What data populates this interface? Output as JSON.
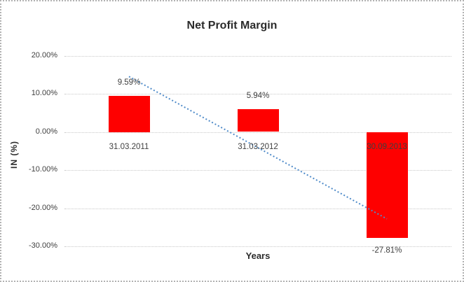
{
  "chart_data": {
    "type": "bar",
    "title": "Net Profit Margin",
    "xlabel": "Years",
    "ylabel": "IN (%)",
    "categories": [
      "31.03.2011",
      "31.03.2012",
      "30.09.2013"
    ],
    "values": [
      9.59,
      5.94,
      -27.81
    ],
    "data_labels": [
      "9.59%",
      "5.94%",
      "-27.81%"
    ],
    "y_ticks": [
      {
        "label": "20.00%",
        "value": 20
      },
      {
        "label": "10.00%",
        "value": 10
      },
      {
        "label": "0.00%",
        "value": 0
      },
      {
        "label": "-10.00%",
        "value": -10
      },
      {
        "label": "-20.00%",
        "value": -20
      },
      {
        "label": "-30.00%",
        "value": -30
      }
    ],
    "ylim": [
      -30,
      20
    ],
    "grid": true,
    "legend_position": "none",
    "trendline": {
      "type": "linear",
      "style": "dotted"
    },
    "colors": {
      "bar": "#fe0000",
      "trendline": "#4f8bc9",
      "gridline": "#c9c9c9",
      "tick_text": "#3f3f3f",
      "label_text": "#3f3f3f",
      "title_text": "#2b2b2b",
      "figure_border": "#b3b3b3"
    }
  }
}
